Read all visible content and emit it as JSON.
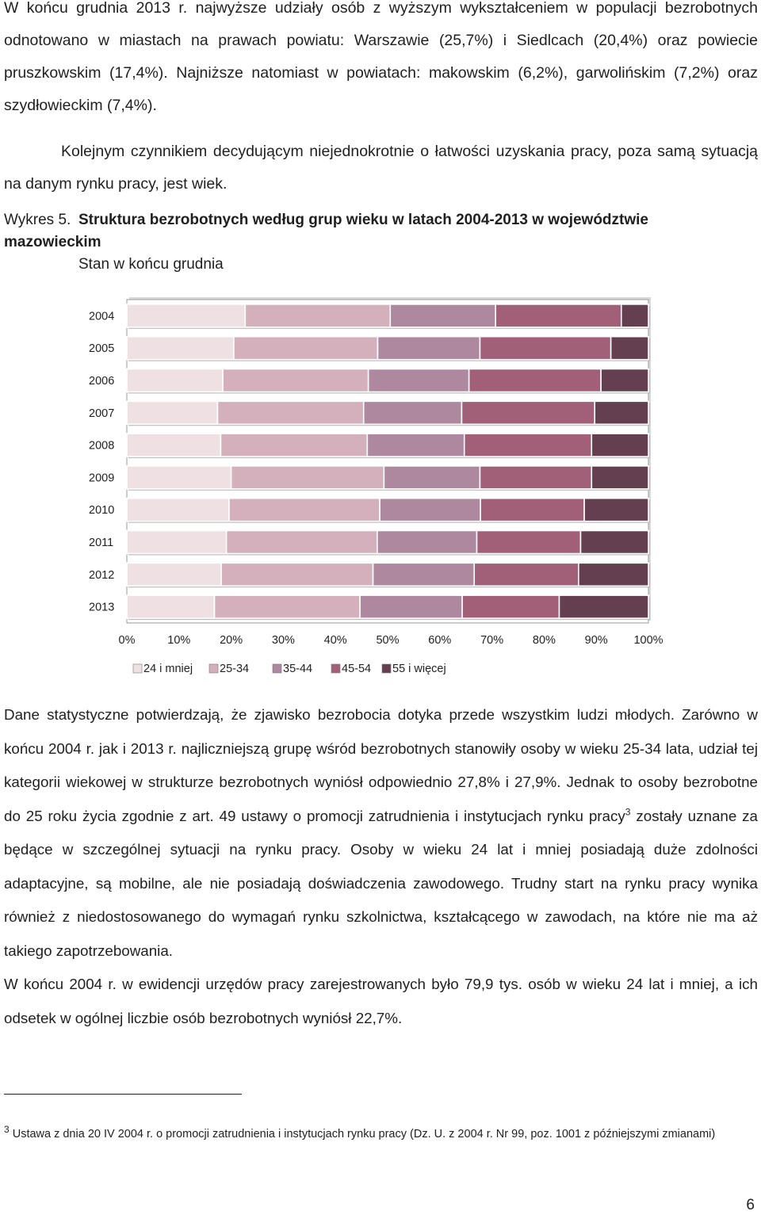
{
  "paragraphs": {
    "p1": "W końcu grudnia 2013 r. najwyższe udziały osób z wyższym wykształceniem w populacji bezrobotnych odnotowano w miastach na prawach powiatu: Warszawie (25,7%) i Siedlcach (20,4%) oraz powiecie pruszkowskim (17,4%). Najniższe natomiast w powiatach: makowskim (6,2%), garwolińskim (7,2%) oraz szydłowieckim (7,4%).",
    "p2": "Kolejnym czynnikiem decydującym niejednokrotnie o łatwości uzyskania pracy, poza samą sytuacją na danym rynku pracy, jest wiek.",
    "p3a": "Dane statystyczne potwierdzają, że zjawisko bezrobocia dotyka przede wszystkim ludzi młodych. Zarówno w końcu 2004 r. jak i 2013 r. najliczniejszą grupę wśród bezrobotnych stanowiły osoby w wieku 25-34 lata, udział tej kategorii wiekowej w strukturze bezrobotnych wyniósł odpowiednio 27,8% i 27,9%. Jednak to osoby bezrobotne do 25 roku życia zgodnie z art. 49 ustawy o promocji zatrudnienia i instytucjach rynku pracy",
    "p3_sup": "3",
    "p3b": " zostały uznane za będące w szczególnej sytuacji na rynku pracy. Osoby w wieku 24 lat i mniej posiadają duże zdolności adaptacyjne, są mobilne, ale nie posiadają doświadczenia zawodowego. Trudny start na rynku pracy wynika również z niedostosowanego do wymagań rynku szkolnictwa, kształcącego w zawodach, na które nie ma aż takiego zapotrzebowania.",
    "p4": "W końcu 2004 r. w ewidencji urzędów pracy zarejestrowanych było 79,9 tys. osób w wieku 24 lat i mniej, a ich odsetek w ogólnej liczbie osób bezrobotnych wyniósł 22,7%."
  },
  "caption": {
    "label": "Wykres 5.",
    "title": "Struktura bezrobotnych według grup wieku w latach 2004-2013 w województwie mazowieckim",
    "subtitle": "Stan w końcu grudnia"
  },
  "footnote": {
    "num": "3",
    "text": " Ustawa z dnia 20 IV 2004 r. o promocji zatrudnienia i instytucjach rynku pracy (Dz. U. z 2004 r. Nr 99, poz. 1001 z późniejszymi zmianami)"
  },
  "page_number": "6",
  "chart_data": {
    "type": "bar",
    "orientation": "horizontal",
    "stacked": "percent",
    "categories": [
      "2004",
      "2005",
      "2006",
      "2007",
      "2008",
      "2009",
      "2010",
      "2011",
      "2012",
      "2013"
    ],
    "series": [
      {
        "name": "24 i mniej",
        "color": "#efe0e3",
        "values": [
          22.7,
          20.5,
          18.4,
          17.4,
          18.0,
          20.0,
          19.6,
          19.1,
          18.1,
          16.8
        ]
      },
      {
        "name": "25-34",
        "color": "#d4b0bc",
        "values": [
          27.8,
          27.6,
          27.9,
          28.0,
          28.1,
          29.3,
          28.9,
          28.9,
          29.1,
          27.9
        ]
      },
      {
        "name": "35-44",
        "color": "#ad889f",
        "values": [
          20.2,
          19.6,
          19.3,
          18.8,
          18.6,
          18.4,
          19.3,
          19.1,
          19.4,
          19.6
        ]
      },
      {
        "name": "45-54",
        "color": "#a15f78",
        "values": [
          24.1,
          25.1,
          25.3,
          25.5,
          24.4,
          21.4,
          19.9,
          19.9,
          20.0,
          18.6
        ]
      },
      {
        "name": "55 i więcej",
        "color": "#643f50",
        "values": [
          5.2,
          7.2,
          9.1,
          10.3,
          10.9,
          10.9,
          12.3,
          13.0,
          13.4,
          17.1
        ]
      }
    ],
    "x_ticks": [
      "0%",
      "10%",
      "20%",
      "30%",
      "40%",
      "50%",
      "60%",
      "70%",
      "80%",
      "90%",
      "100%"
    ],
    "xlim": [
      0,
      100
    ],
    "legend_position": "bottom",
    "grid": false
  }
}
